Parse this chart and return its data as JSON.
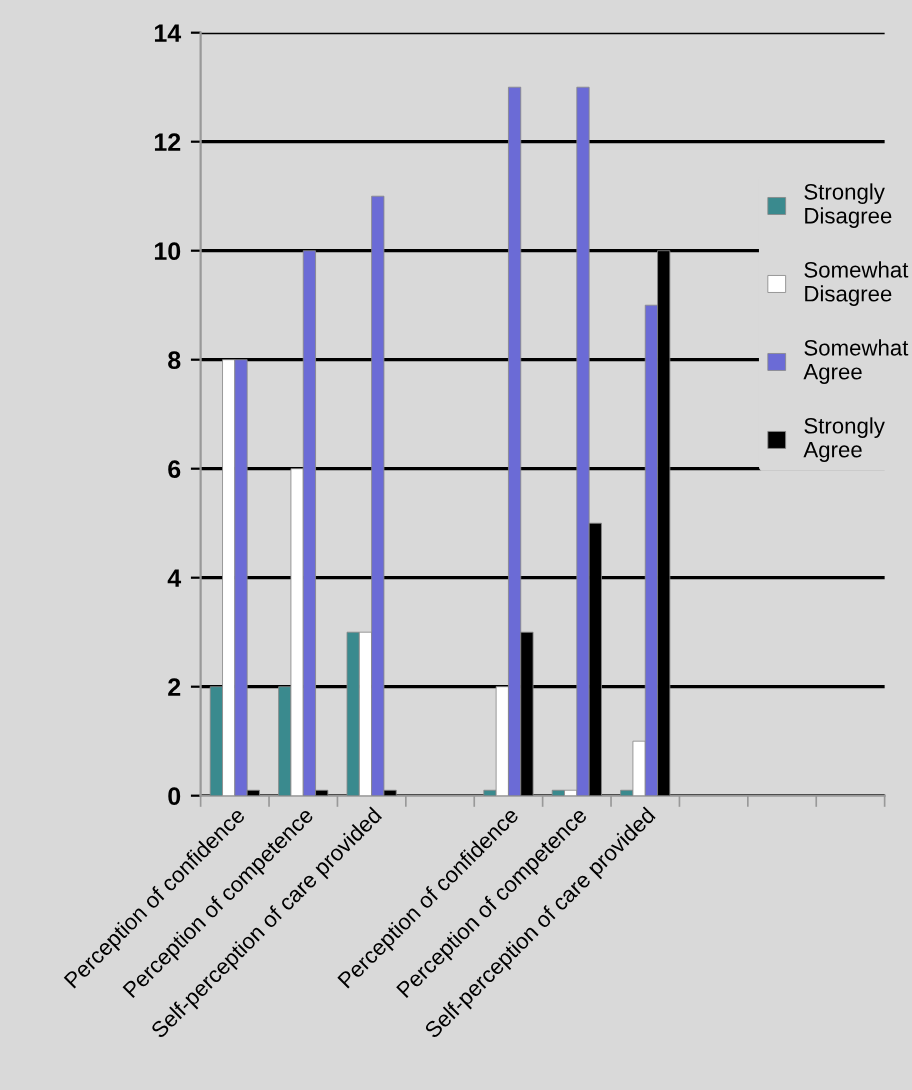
{
  "chart_data": {
    "type": "bar",
    "categories": [
      "Perception of confidence",
      "Perception of competence",
      "Self-perception of care provided",
      null,
      "Perception of confidence",
      "Perception of competence",
      "Self-perception of care provided",
      null,
      null,
      null
    ],
    "series": [
      {
        "name": "Strongly Disagree",
        "color": "#3a8a8e",
        "values": [
          2,
          2,
          3,
          null,
          0.1,
          0.1,
          0.1,
          null,
          null,
          null
        ]
      },
      {
        "name": "Somewhat Disagree",
        "color": "#ffffff",
        "values": [
          8,
          6,
          3,
          null,
          2,
          0.1,
          1,
          null,
          null,
          null
        ]
      },
      {
        "name": "Somewhat Agree",
        "color": "#6b6bd6",
        "values": [
          8,
          10,
          11,
          null,
          13,
          13,
          9,
          null,
          null,
          null
        ]
      },
      {
        "name": "Strongly Agree",
        "color": "#000000",
        "values": [
          0.1,
          0.1,
          0.1,
          null,
          3,
          5,
          10,
          null,
          null,
          null
        ]
      }
    ],
    "ylim": [
      0,
      14
    ],
    "yticks": [
      0,
      2,
      4,
      6,
      8,
      10,
      12,
      14
    ],
    "grid": "y",
    "legend": "right"
  }
}
